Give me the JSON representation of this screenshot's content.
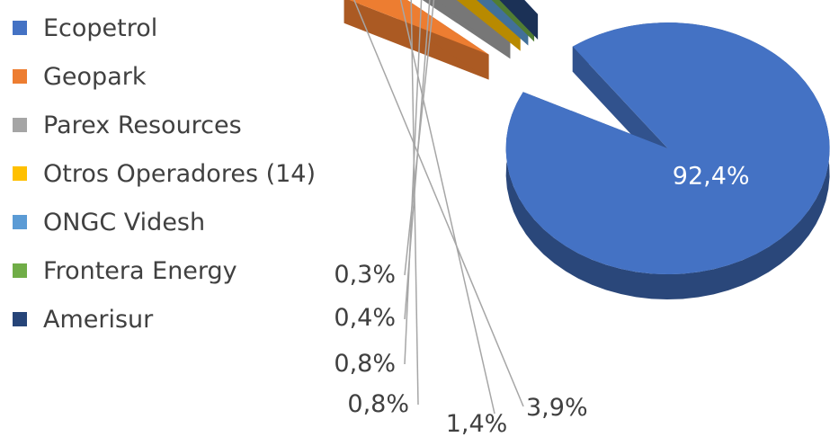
{
  "chart_data": {
    "type": "pie",
    "title": "",
    "style": "3d-exploded",
    "legend": "left",
    "categories": [
      "Ecopetrol",
      "Geopark",
      "Parex Resources",
      "Otros Operadores (14)",
      "ONGC Videsh",
      "Frontera Energy",
      "Amerisur"
    ],
    "values": [
      92.4,
      3.9,
      1.4,
      0.8,
      0.8,
      0.4,
      0.3
    ],
    "labels": [
      "92,4%",
      "3,9%",
      "1,4%",
      "0,8%",
      "0,8%",
      "0,4%",
      "0,3%"
    ],
    "colors": [
      "#4472C4",
      "#ED7D31",
      "#A5A5A5",
      "#FFC000",
      "#5B9BD5",
      "#70AD47",
      "#264478"
    ]
  }
}
